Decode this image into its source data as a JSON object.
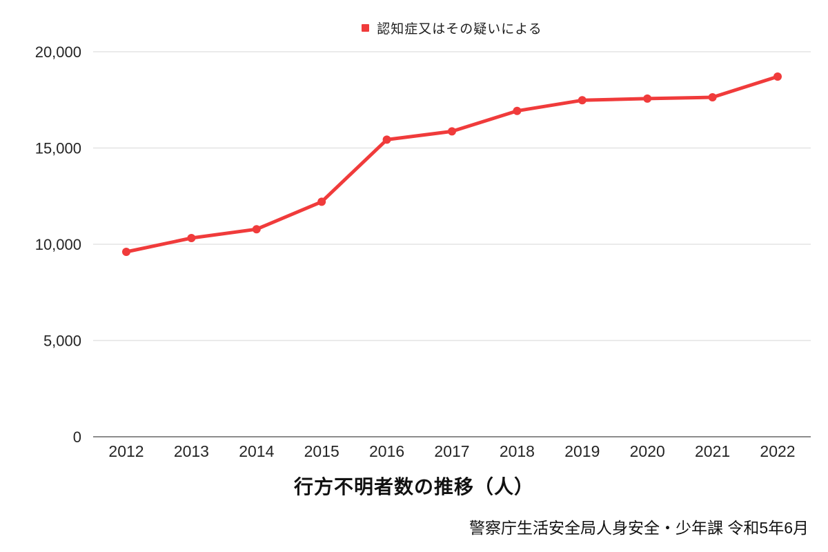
{
  "legend": {
    "label": "認知症又はその疑いによる"
  },
  "chart_data": {
    "type": "line",
    "title": "行方不明者数の推移（人）",
    "source": "警察庁生活安全局人身安全・少年課 令和5年6月",
    "categories": [
      "2012",
      "2013",
      "2014",
      "2015",
      "2016",
      "2017",
      "2018",
      "2019",
      "2020",
      "2021",
      "2022"
    ],
    "series": [
      {
        "name": "認知症又はその疑いによる",
        "color": "#f03b3b",
        "values": [
          9607,
          10322,
          10783,
          12208,
          15432,
          15863,
          16927,
          17479,
          17565,
          17636,
          18709
        ]
      }
    ],
    "ylim": [
      0,
      20000
    ],
    "yticks": [
      0,
      5000,
      10000,
      15000,
      20000
    ],
    "grid": true,
    "legend_position": "top",
    "xlabel": "",
    "ylabel": ""
  },
  "colors": {
    "series_red": "#f03b3b",
    "gridline": "#e3e3e3",
    "axis_line": "#8c8c8c",
    "tick_text": "#242424"
  }
}
